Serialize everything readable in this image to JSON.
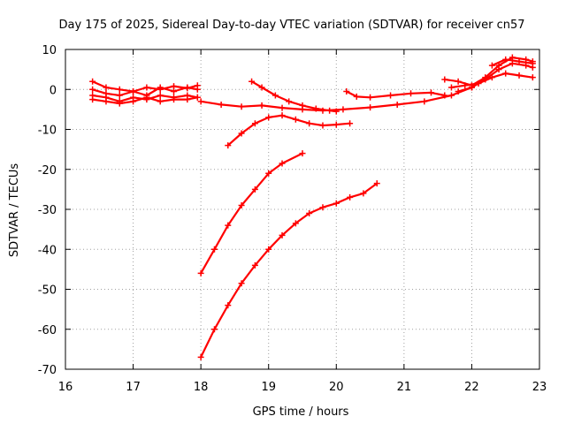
{
  "chart_data": {
    "type": "scatter",
    "title": "Day 175 of 2025, Sidereal Day-to-day VTEC variation (SDTVAR) for receiver cn57",
    "xlabel": "GPS time / hours",
    "ylabel": "SDTVAR / TECUs",
    "xlim": [
      16,
      23
    ],
    "ylim": [
      -70,
      10
    ],
    "xticks": [
      16,
      17,
      18,
      19,
      20,
      21,
      22,
      23
    ],
    "yticks": [
      10,
      0,
      -10,
      -20,
      -30,
      -40,
      -50,
      -60,
      -70
    ],
    "grid": true,
    "marker": "plus",
    "color": "#ff0000",
    "series": [
      {
        "x": [
          16.4,
          16.6,
          16.8,
          17.0,
          17.2,
          17.4,
          17.6,
          17.8,
          17.95
        ],
        "y": [
          2.0,
          0.5,
          0.0,
          -0.5,
          0.5,
          0.0,
          0.8,
          0.3,
          1.0
        ]
      },
      {
        "x": [
          16.4,
          16.6,
          16.8,
          17.0,
          17.2,
          17.4,
          17.6,
          17.8,
          17.95
        ],
        "y": [
          0.0,
          -1.0,
          -1.5,
          -0.5,
          -1.5,
          0.5,
          -0.5,
          0.5,
          0.0
        ]
      },
      {
        "x": [
          16.4,
          16.6,
          16.8,
          17.0,
          17.2,
          17.4,
          17.6,
          17.8,
          17.95
        ],
        "y": [
          -1.5,
          -2.0,
          -3.0,
          -2.0,
          -2.5,
          -1.5,
          -2.0,
          -1.5,
          -2.0
        ]
      },
      {
        "x": [
          16.4,
          16.6,
          16.8,
          17.0,
          17.2,
          17.4,
          17.6,
          17.8,
          17.95
        ],
        "y": [
          -2.5,
          -3.0,
          -3.5,
          -3.0,
          -2.0,
          -3.0,
          -2.5,
          -2.5,
          -2.0
        ]
      },
      {
        "x": [
          18.0,
          18.3,
          18.6,
          18.9,
          19.2,
          19.5,
          19.8,
          20.1,
          20.5,
          20.9,
          21.3,
          21.7,
          22.0
        ],
        "y": [
          -3.0,
          -3.8,
          -4.3,
          -4.0,
          -4.6,
          -5.0,
          -5.3,
          -5.0,
          -4.5,
          -3.8,
          -3.0,
          -1.5,
          0.5
        ]
      },
      {
        "x": [
          18.4,
          18.6,
          18.8,
          19.0,
          19.2,
          19.4,
          19.6,
          19.8,
          20.0,
          20.2
        ],
        "y": [
          -14.0,
          -11.0,
          -8.5,
          -7.0,
          -6.5,
          -7.5,
          -8.5,
          -9.0,
          -8.8,
          -8.5
        ]
      },
      {
        "x": [
          18.75,
          18.9,
          19.1,
          19.3,
          19.5,
          19.7,
          19.9,
          20.0
        ],
        "y": [
          2.0,
          0.5,
          -1.5,
          -3.0,
          -4.0,
          -4.8,
          -5.3,
          -5.5
        ]
      },
      {
        "x": [
          20.15,
          20.3,
          20.5,
          20.8,
          21.1,
          21.4,
          21.6
        ],
        "y": [
          -0.5,
          -1.8,
          -2.0,
          -1.5,
          -1.0,
          -0.8,
          -1.5
        ]
      },
      {
        "x": [
          18.0,
          18.2,
          18.4,
          18.6,
          18.8,
          19.0,
          19.2,
          19.5
        ],
        "y": [
          -46.0,
          -40.0,
          -34.0,
          -29.0,
          -25.0,
          -21.0,
          -18.5,
          -16.0
        ]
      },
      {
        "x": [
          18.0,
          18.2,
          18.4,
          18.6,
          18.8,
          19.0,
          19.2,
          19.4,
          19.6,
          19.8,
          20.0,
          20.2,
          20.4,
          20.6
        ],
        "y": [
          -67.0,
          -60.0,
          -54.0,
          -48.5,
          -44.0,
          -40.0,
          -36.5,
          -33.5,
          -31.0,
          -29.5,
          -28.5,
          -27.0,
          -26.0,
          -23.5
        ]
      },
      {
        "x": [
          21.6,
          21.8,
          22.0,
          22.2,
          22.4,
          22.6,
          22.8,
          22.9
        ],
        "y": [
          2.5,
          2.0,
          1.0,
          3.0,
          6.0,
          8.0,
          7.5,
          7.0
        ]
      },
      {
        "x": [
          21.8,
          22.0,
          22.2,
          22.4,
          22.6,
          22.8,
          22.9
        ],
        "y": [
          -0.5,
          0.5,
          2.5,
          5.0,
          6.5,
          6.0,
          5.5
        ]
      },
      {
        "x": [
          21.7,
          21.9,
          22.1,
          22.3,
          22.5,
          22.7,
          22.9
        ],
        "y": [
          0.5,
          1.0,
          1.5,
          3.0,
          4.0,
          3.5,
          3.0
        ]
      },
      {
        "x": [
          22.3,
          22.5,
          22.7,
          22.9
        ],
        "y": [
          6.0,
          7.5,
          7.0,
          6.5
        ]
      }
    ]
  }
}
